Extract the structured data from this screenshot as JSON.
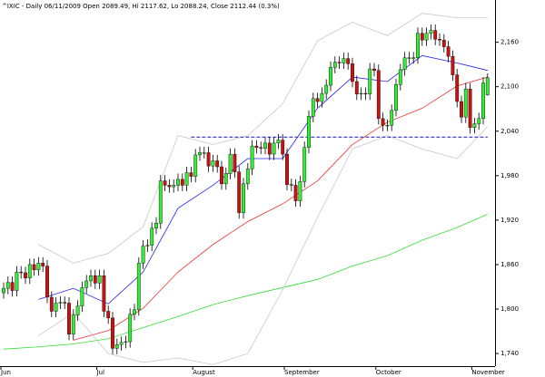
{
  "chart_data": {
    "type": "candlestick",
    "title": "^IXIC - Daily 06/11/2009 Open 2089.49, Hi 2117.62, Lo 2088.24, Close 2112.44 (0.3%)",
    "categories": [
      "Jun",
      null,
      null,
      null,
      null,
      null,
      null,
      null,
      null,
      null,
      null,
      null,
      null,
      null,
      null,
      null,
      null,
      null,
      null,
      null,
      null,
      null,
      "Jul",
      null,
      null,
      null,
      null,
      null,
      null,
      null,
      null,
      null,
      null,
      null,
      null,
      null,
      null,
      null,
      null,
      null,
      null,
      null,
      null,
      null,
      "August",
      null,
      null,
      null,
      null,
      null,
      null,
      null,
      null,
      null,
      null,
      null,
      null,
      null,
      null,
      null,
      null,
      null,
      null,
      null,
      null,
      "September",
      null,
      null,
      null,
      null,
      null,
      null,
      null,
      null,
      null,
      null,
      null,
      null,
      null,
      null,
      null,
      null,
      null,
      null,
      null,
      null,
      "October",
      null,
      null,
      null,
      null,
      null,
      null,
      null,
      null,
      null,
      null,
      null,
      null,
      null,
      null,
      null,
      null,
      null,
      null,
      null,
      null,
      null,
      "November",
      null,
      null,
      null
    ],
    "open": [
      1822,
      1828,
      1836,
      1825,
      1850,
      1849,
      1842,
      1860,
      1853,
      1862,
      1858,
      1816,
      1797,
      1808,
      1809,
      1808,
      1766,
      1792,
      1804,
      1829,
      1838,
      1845,
      1835,
      1845,
      1797,
      1788,
      1747,
      1752,
      1755,
      1756,
      1793,
      1799,
      1862,
      1885,
      1886,
      1909,
      1916,
      1973,
      1967,
      1965,
      1967,
      1975,
      1967,
      1984,
      1979,
      2008,
      2011,
      2011,
      1993,
      2000,
      1992,
      1969,
      1983,
      2009,
      1985,
      1930,
      1969,
      1989,
      2020,
      2018,
      2017,
      2024,
      2009,
      2024,
      2028,
      2009,
      1968,
      1967,
      1946,
      1972,
      2018,
      2060,
      2084,
      2080,
      2091,
      2102,
      2126,
      2133,
      2132,
      2138,
      2131,
      2107,
      2090,
      2091,
      2090,
      2124,
      2122,
      2057,
      2048,
      2048,
      2068,
      2103,
      2123,
      2139,
      2139,
      2139,
      2172,
      2163,
      2172,
      2176,
      2164,
      2163,
      2154,
      2141,
      2116,
      2080,
      2059,
      2097,
      2045,
      2050,
      2057,
      2089
    ],
    "high": [
      1836,
      1844,
      1844,
      1858,
      1858,
      1857,
      1868,
      1868,
      1870,
      1870,
      1866,
      1824,
      1816,
      1817,
      1817,
      1816,
      1800,
      1812,
      1837,
      1846,
      1853,
      1853,
      1853,
      1853,
      1805,
      1796,
      1760,
      1763,
      1764,
      1801,
      1807,
      1870,
      1893,
      1894,
      1917,
      1924,
      1981,
      1981,
      1975,
      1975,
      1983,
      1983,
      1992,
      1992,
      2016,
      2019,
      2019,
      2019,
      2008,
      2008,
      2000,
      1991,
      2017,
      2017,
      1993,
      1977,
      1997,
      2028,
      2028,
      2026,
      2032,
      2032,
      2032,
      2036,
      2036,
      2017,
      1976,
      1975,
      1980,
      2026,
      2068,
      2092,
      2092,
      2099,
      2110,
      2134,
      2141,
      2141,
      2146,
      2146,
      2139,
      2115,
      2099,
      2099,
      2132,
      2132,
      2130,
      2065,
      2056,
      2076,
      2111,
      2131,
      2147,
      2147,
      2147,
      2180,
      2180,
      2180,
      2184,
      2184,
      2172,
      2171,
      2162,
      2149,
      2124,
      2088,
      2105,
      2105,
      2058,
      2065,
      2113,
      2118
    ],
    "low": [
      1814,
      1820,
      1817,
      1817,
      1841,
      1834,
      1834,
      1845,
      1845,
      1850,
      1808,
      1789,
      1789,
      1800,
      1800,
      1758,
      1758,
      1784,
      1796,
      1821,
      1830,
      1827,
      1827,
      1789,
      1780,
      1739,
      1739,
      1744,
      1747,
      1748,
      1785,
      1791,
      1854,
      1877,
      1878,
      1901,
      1908,
      1959,
      1957,
      1957,
      1959,
      1959,
      1959,
      1971,
      1971,
      2000,
      2003,
      1985,
      1985,
      1984,
      1961,
      1961,
      1975,
      1977,
      1922,
      1922,
      1961,
      1981,
      2010,
      2009,
      2009,
      2001,
      2001,
      2016,
      2001,
      1960,
      1959,
      1938,
      1938,
      1964,
      2010,
      2052,
      2072,
      2072,
      2083,
      2094,
      2118,
      2124,
      2124,
      2123,
      2099,
      2082,
      2082,
      2082,
      2082,
      2114,
      2049,
      2040,
      2040,
      2040,
      2060,
      2095,
      2115,
      2131,
      2131,
      2131,
      2155,
      2155,
      2164,
      2156,
      2155,
      2146,
      2133,
      2108,
      2072,
      2051,
      2051,
      2037,
      2037,
      2042,
      2049,
      2088
    ],
    "close": [
      1828,
      1836,
      1825,
      1850,
      1849,
      1842,
      1860,
      1853,
      1862,
      1858,
      1816,
      1797,
      1808,
      1809,
      1808,
      1766,
      1792,
      1804,
      1829,
      1838,
      1845,
      1835,
      1845,
      1797,
      1788,
      1747,
      1752,
      1755,
      1756,
      1793,
      1799,
      1862,
      1885,
      1886,
      1909,
      1916,
      1973,
      1967,
      1965,
      1967,
      1975,
      1967,
      1984,
      1979,
      2008,
      2011,
      2011,
      1993,
      2000,
      1992,
      1969,
      1983,
      2009,
      1985,
      1930,
      1969,
      1989,
      2020,
      2018,
      2017,
      2024,
      2009,
      2024,
      2028,
      2009,
      1968,
      1967,
      1946,
      1972,
      2018,
      2060,
      2084,
      2080,
      2091,
      2102,
      2126,
      2133,
      2132,
      2138,
      2131,
      2107,
      2090,
      2091,
      2090,
      2124,
      2122,
      2057,
      2048,
      2048,
      2068,
      2103,
      2123,
      2139,
      2139,
      2139,
      2172,
      2163,
      2172,
      2176,
      2164,
      2163,
      2154,
      2141,
      2116,
      2080,
      2059,
      2097,
      2045,
      2050,
      2057,
      2105,
      2112
    ],
    "up_color": "#33ee33",
    "down_color": "#cc1111",
    "overlays": [
      {
        "color": "#33dd33",
        "x": [
          0,
          8,
          16,
          24,
          32,
          40,
          48,
          56,
          64,
          72,
          80,
          88,
          96,
          104,
          111
        ],
        "values": [
          1746,
          1749,
          1753,
          1760,
          1775,
          1790,
          1806,
          1818,
          1829,
          1840,
          1858,
          1872,
          1893,
          1910,
          1928
        ]
      },
      {
        "color": "#ee3333",
        "x": [
          0,
          8,
          16,
          24,
          32,
          40,
          48,
          56,
          64,
          72,
          80,
          88,
          96,
          104,
          111
        ],
        "values": [
          null,
          null,
          1758,
          1771,
          1801,
          1850,
          1887,
          1918,
          1942,
          1973,
          2022,
          2052,
          2071,
          2101,
          2113
        ]
      },
      {
        "color": "#2222ee",
        "x": [
          0,
          8,
          16,
          24,
          32,
          40,
          48,
          56,
          64,
          72,
          80,
          88,
          96,
          104,
          111
        ],
        "values": [
          null,
          1813,
          1828,
          1807,
          1850,
          1936,
          1967,
          2003,
          2003,
          2071,
          2113,
          2107,
          2142,
          2132,
          2122
        ]
      },
      {
        "color": "#c8c8c8",
        "x": [
          0,
          8,
          16,
          24,
          32,
          40,
          48,
          56,
          64,
          72,
          80,
          88,
          96,
          104,
          111
        ],
        "values": [
          null,
          1887,
          1862,
          1875,
          1911,
          2034,
          2022,
          2034,
          2077,
          2162,
          2187,
          2169,
          2199,
          2193,
          2193
        ]
      },
      {
        "color": "#c8c8c8",
        "x": [
          0,
          8,
          16,
          24,
          32,
          40,
          48,
          56,
          64,
          72,
          80,
          88,
          96,
          104,
          111
        ],
        "values": [
          null,
          1764,
          1795,
          1740,
          1728,
          1734,
          1725,
          1740,
          1826,
          1924,
          2016,
          2034,
          2016,
          2003,
          2046
        ]
      }
    ],
    "hline": {
      "value": 2032,
      "x": [
        43,
        111
      ],
      "color": "#3333bb"
    },
    "ylim": [
      1723,
      2217
    ],
    "yticks": [
      {
        "value": 1740,
        "label": "1,740"
      },
      {
        "value": 1800,
        "label": "1,800"
      },
      {
        "value": 1860,
        "label": "1,860"
      },
      {
        "value": 1920,
        "label": "1,920"
      },
      {
        "value": 1980,
        "label": "1,980"
      },
      {
        "value": 2040,
        "label": "2,040"
      },
      {
        "value": 2100,
        "label": "2,100"
      },
      {
        "value": 2160,
        "label": "2,160"
      }
    ]
  }
}
